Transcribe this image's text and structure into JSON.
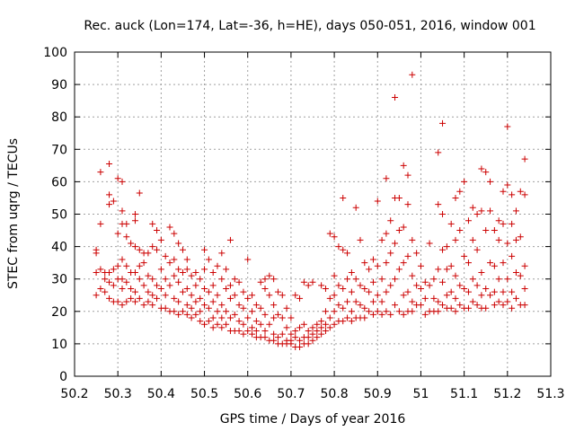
{
  "chart_data": {
    "type": "scatter",
    "title": "Rec. auck (Lon=174, Lat=-36, h=HE), days 050-051, 2016, window 001",
    "xlabel": "GPS time / Days of year 2016",
    "ylabel": "STEC from uqrg / TECUs",
    "xlim": [
      50.2,
      51.3
    ],
    "ylim": [
      0,
      100
    ],
    "xticks": [
      "50.2",
      "50.3",
      "50.4",
      "50.5",
      "50.6",
      "50.7",
      "50.8",
      "50.9",
      "51",
      "51.1",
      "51.2",
      "51.3"
    ],
    "yticks": [
      "0",
      "10",
      "20",
      "30",
      "40",
      "50",
      "60",
      "70",
      "80",
      "90",
      "100"
    ],
    "grid": true,
    "marker": "plus",
    "color": "#cc0000",
    "points": [
      [
        50.25,
        38
      ],
      [
        50.25,
        39
      ],
      [
        50.25,
        32
      ],
      [
        50.25,
        25
      ],
      [
        50.26,
        63
      ],
      [
        50.26,
        47
      ],
      [
        50.26,
        33
      ],
      [
        50.26,
        27
      ],
      [
        50.27,
        32
      ],
      [
        50.27,
        30
      ],
      [
        50.27,
        26
      ],
      [
        50.28,
        65.5
      ],
      [
        50.28,
        56
      ],
      [
        50.28,
        53
      ],
      [
        50.28,
        32
      ],
      [
        50.28,
        29
      ],
      [
        50.28,
        24
      ],
      [
        50.29,
        54
      ],
      [
        50.29,
        33
      ],
      [
        50.29,
        28
      ],
      [
        50.29,
        23
      ],
      [
        50.3,
        61
      ],
      [
        50.3,
        44
      ],
      [
        50.3,
        34
      ],
      [
        50.3,
        30
      ],
      [
        50.3,
        23
      ],
      [
        50.31,
        60
      ],
      [
        50.31,
        51
      ],
      [
        50.31,
        47
      ],
      [
        50.31,
        36
      ],
      [
        50.31,
        30
      ],
      [
        50.31,
        27
      ],
      [
        50.31,
        22
      ],
      [
        50.32,
        47
      ],
      [
        50.32,
        43
      ],
      [
        50.32,
        34
      ],
      [
        50.32,
        29
      ],
      [
        50.32,
        23
      ],
      [
        50.33,
        41
      ],
      [
        50.33,
        32
      ],
      [
        50.33,
        27
      ],
      [
        50.33,
        24
      ],
      [
        50.34,
        50
      ],
      [
        50.34,
        48
      ],
      [
        50.34,
        40
      ],
      [
        50.34,
        32
      ],
      [
        50.34,
        26
      ],
      [
        50.34,
        23
      ],
      [
        50.35,
        56.5
      ],
      [
        50.35,
        39
      ],
      [
        50.35,
        34
      ],
      [
        50.35,
        30
      ],
      [
        50.35,
        24
      ],
      [
        50.36,
        38
      ],
      [
        50.36,
        35
      ],
      [
        50.36,
        28
      ],
      [
        50.36,
        22
      ],
      [
        50.37,
        38
      ],
      [
        50.37,
        31
      ],
      [
        50.37,
        26
      ],
      [
        50.37,
        23
      ],
      [
        50.38,
        47
      ],
      [
        50.38,
        40
      ],
      [
        50.38,
        30
      ],
      [
        50.38,
        25
      ],
      [
        50.38,
        22
      ],
      [
        50.39,
        45
      ],
      [
        50.39,
        39
      ],
      [
        50.39,
        28
      ],
      [
        50.39,
        24
      ],
      [
        50.4,
        42
      ],
      [
        50.4,
        33
      ],
      [
        50.4,
        27
      ],
      [
        50.4,
        21
      ],
      [
        50.41,
        37
      ],
      [
        50.41,
        30
      ],
      [
        50.41,
        25
      ],
      [
        50.41,
        21
      ],
      [
        50.42,
        46
      ],
      [
        50.42,
        35
      ],
      [
        50.42,
        28
      ],
      [
        50.42,
        20
      ],
      [
        50.43,
        44
      ],
      [
        50.43,
        36
      ],
      [
        50.43,
        31
      ],
      [
        50.43,
        24
      ],
      [
        50.43,
        20
      ],
      [
        50.44,
        41
      ],
      [
        50.44,
        33
      ],
      [
        50.44,
        29
      ],
      [
        50.44,
        23
      ],
      [
        50.44,
        19
      ],
      [
        50.45,
        39
      ],
      [
        50.45,
        32
      ],
      [
        50.45,
        26
      ],
      [
        50.45,
        20
      ],
      [
        50.46,
        36
      ],
      [
        50.46,
        33
      ],
      [
        50.46,
        27
      ],
      [
        50.46,
        22
      ],
      [
        50.46,
        19
      ],
      [
        50.47,
        31
      ],
      [
        50.47,
        25
      ],
      [
        50.47,
        21
      ],
      [
        50.47,
        18
      ],
      [
        50.48,
        32
      ],
      [
        50.48,
        28
      ],
      [
        50.48,
        23
      ],
      [
        50.48,
        19
      ],
      [
        50.49,
        30
      ],
      [
        50.49,
        24
      ],
      [
        50.49,
        20
      ],
      [
        50.49,
        17
      ],
      [
        50.5,
        39
      ],
      [
        50.5,
        33
      ],
      [
        50.5,
        27
      ],
      [
        50.5,
        22
      ],
      [
        50.5,
        16
      ],
      [
        50.51,
        36
      ],
      [
        50.51,
        26
      ],
      [
        50.51,
        21
      ],
      [
        50.51,
        17
      ],
      [
        50.52,
        32
      ],
      [
        50.52,
        28
      ],
      [
        50.52,
        23
      ],
      [
        50.52,
        18
      ],
      [
        50.52,
        15
      ],
      [
        50.53,
        34
      ],
      [
        50.53,
        25
      ],
      [
        50.53,
        20
      ],
      [
        50.53,
        16
      ],
      [
        50.54,
        38
      ],
      [
        50.54,
        30
      ],
      [
        50.54,
        22
      ],
      [
        50.54,
        18
      ],
      [
        50.54,
        15
      ],
      [
        50.55,
        33
      ],
      [
        50.55,
        27
      ],
      [
        50.55,
        20
      ],
      [
        50.55,
        16
      ],
      [
        50.56,
        42
      ],
      [
        50.56,
        28
      ],
      [
        50.56,
        24
      ],
      [
        50.56,
        18
      ],
      [
        50.56,
        14
      ],
      [
        50.57,
        30
      ],
      [
        50.57,
        25
      ],
      [
        50.57,
        19
      ],
      [
        50.57,
        14
      ],
      [
        50.58,
        29
      ],
      [
        50.58,
        22
      ],
      [
        50.58,
        17
      ],
      [
        50.58,
        14
      ],
      [
        50.59,
        26
      ],
      [
        50.59,
        21
      ],
      [
        50.59,
        16
      ],
      [
        50.59,
        13
      ],
      [
        50.6,
        36
      ],
      [
        50.6,
        24
      ],
      [
        50.6,
        18
      ],
      [
        50.6,
        14
      ],
      [
        50.61,
        25
      ],
      [
        50.61,
        20
      ],
      [
        50.61,
        15
      ],
      [
        50.61,
        13
      ],
      [
        50.62,
        22
      ],
      [
        50.62,
        17
      ],
      [
        50.62,
        14
      ],
      [
        50.62,
        12
      ],
      [
        50.63,
        29
      ],
      [
        50.63,
        21
      ],
      [
        50.63,
        16
      ],
      [
        50.63,
        12
      ],
      [
        50.64,
        30
      ],
      [
        50.64,
        27
      ],
      [
        50.64,
        19
      ],
      [
        50.64,
        14
      ],
      [
        50.64,
        12
      ],
      [
        50.65,
        31
      ],
      [
        50.65,
        25
      ],
      [
        50.65,
        16
      ],
      [
        50.65,
        11
      ],
      [
        50.66,
        30
      ],
      [
        50.66,
        22
      ],
      [
        50.66,
        18
      ],
      [
        50.66,
        13
      ],
      [
        50.66,
        11
      ],
      [
        50.67,
        26
      ],
      [
        50.67,
        19
      ],
      [
        50.67,
        12
      ],
      [
        50.67,
        10
      ],
      [
        50.68,
        25
      ],
      [
        50.68,
        18
      ],
      [
        50.68,
        13
      ],
      [
        50.68,
        10
      ],
      [
        50.69,
        21
      ],
      [
        50.69,
        15
      ],
      [
        50.69,
        11
      ],
      [
        50.69,
        10
      ],
      [
        50.7,
        18
      ],
      [
        50.7,
        13
      ],
      [
        50.7,
        11
      ],
      [
        50.7,
        10
      ],
      [
        50.71,
        25
      ],
      [
        50.71,
        14
      ],
      [
        50.71,
        12
      ],
      [
        50.71,
        9
      ],
      [
        50.72,
        24
      ],
      [
        50.72,
        15
      ],
      [
        50.72,
        11
      ],
      [
        50.72,
        9
      ],
      [
        50.73,
        29
      ],
      [
        50.73,
        16
      ],
      [
        50.73,
        12
      ],
      [
        50.73,
        10
      ],
      [
        50.74,
        28
      ],
      [
        50.74,
        14
      ],
      [
        50.74,
        12
      ],
      [
        50.74,
        10
      ],
      [
        50.75,
        29
      ],
      [
        50.75,
        15
      ],
      [
        50.75,
        13
      ],
      [
        50.75,
        11
      ],
      [
        50.76,
        16
      ],
      [
        50.76,
        14
      ],
      [
        50.76,
        12
      ],
      [
        50.77,
        28
      ],
      [
        50.77,
        17
      ],
      [
        50.77,
        15
      ],
      [
        50.77,
        13
      ],
      [
        50.78,
        27
      ],
      [
        50.78,
        20
      ],
      [
        50.78,
        16
      ],
      [
        50.78,
        14
      ],
      [
        50.79,
        44
      ],
      [
        50.79,
        24
      ],
      [
        50.79,
        18
      ],
      [
        50.79,
        15
      ],
      [
        50.8,
        43
      ],
      [
        50.8,
        31
      ],
      [
        50.8,
        25
      ],
      [
        50.8,
        20
      ],
      [
        50.8,
        16
      ],
      [
        50.81,
        40
      ],
      [
        50.81,
        28
      ],
      [
        50.81,
        22
      ],
      [
        50.81,
        17
      ],
      [
        50.82,
        55
      ],
      [
        50.82,
        39
      ],
      [
        50.82,
        27
      ],
      [
        50.82,
        21
      ],
      [
        50.82,
        17
      ],
      [
        50.83,
        38
      ],
      [
        50.83,
        30
      ],
      [
        50.83,
        23
      ],
      [
        50.83,
        18
      ],
      [
        50.84,
        32
      ],
      [
        50.84,
        26
      ],
      [
        50.84,
        20
      ],
      [
        50.84,
        17
      ],
      [
        50.85,
        52
      ],
      [
        50.85,
        30
      ],
      [
        50.85,
        23
      ],
      [
        50.85,
        18
      ],
      [
        50.86,
        42
      ],
      [
        50.86,
        28
      ],
      [
        50.86,
        22
      ],
      [
        50.86,
        18
      ],
      [
        50.87,
        35
      ],
      [
        50.87,
        27
      ],
      [
        50.87,
        21
      ],
      [
        50.87,
        18
      ],
      [
        50.88,
        33
      ],
      [
        50.88,
        26
      ],
      [
        50.88,
        20
      ],
      [
        50.89,
        36
      ],
      [
        50.89,
        29
      ],
      [
        50.89,
        23
      ],
      [
        50.89,
        19
      ],
      [
        50.9,
        54
      ],
      [
        50.9,
        34
      ],
      [
        50.9,
        25
      ],
      [
        50.9,
        20
      ],
      [
        50.91,
        42
      ],
      [
        50.91,
        30
      ],
      [
        50.91,
        23
      ],
      [
        50.91,
        19
      ],
      [
        50.92,
        61
      ],
      [
        50.92,
        44
      ],
      [
        50.92,
        35
      ],
      [
        50.92,
        26
      ],
      [
        50.92,
        20
      ],
      [
        50.93,
        48
      ],
      [
        50.93,
        38
      ],
      [
        50.93,
        28
      ],
      [
        50.93,
        19
      ],
      [
        50.94,
        86
      ],
      [
        50.94,
        55
      ],
      [
        50.94,
        41
      ],
      [
        50.94,
        30
      ],
      [
        50.94,
        22
      ],
      [
        50.95,
        55
      ],
      [
        50.95,
        45
      ],
      [
        50.95,
        33
      ],
      [
        50.95,
        20
      ],
      [
        50.96,
        65
      ],
      [
        50.96,
        46
      ],
      [
        50.96,
        35
      ],
      [
        50.96,
        25
      ],
      [
        50.96,
        19
      ],
      [
        50.97,
        62
      ],
      [
        50.97,
        53
      ],
      [
        50.97,
        37
      ],
      [
        50.97,
        26
      ],
      [
        50.97,
        20
      ],
      [
        50.98,
        93
      ],
      [
        50.98,
        42
      ],
      [
        50.98,
        31
      ],
      [
        50.98,
        23
      ],
      [
        50.98,
        20
      ],
      [
        50.99,
        38
      ],
      [
        50.99,
        28
      ],
      [
        50.99,
        22
      ],
      [
        51.0,
        34
      ],
      [
        51.0,
        27
      ],
      [
        51.0,
        22
      ],
      [
        51.01,
        29
      ],
      [
        51.01,
        24
      ],
      [
        51.01,
        19
      ],
      [
        51.02,
        41
      ],
      [
        51.02,
        28
      ],
      [
        51.02,
        20
      ],
      [
        51.03,
        30
      ],
      [
        51.03,
        24
      ],
      [
        51.03,
        20
      ],
      [
        51.04,
        69
      ],
      [
        51.04,
        53
      ],
      [
        51.04,
        33
      ],
      [
        51.04,
        23
      ],
      [
        51.04,
        20
      ],
      [
        51.05,
        78
      ],
      [
        51.05,
        50
      ],
      [
        51.05,
        39
      ],
      [
        51.05,
        29
      ],
      [
        51.05,
        22
      ],
      [
        51.06,
        40
      ],
      [
        51.06,
        33
      ],
      [
        51.06,
        25
      ],
      [
        51.06,
        21
      ],
      [
        51.07,
        47
      ],
      [
        51.07,
        34
      ],
      [
        51.07,
        26
      ],
      [
        51.07,
        21
      ],
      [
        51.08,
        55
      ],
      [
        51.08,
        42
      ],
      [
        51.08,
        31
      ],
      [
        51.08,
        24
      ],
      [
        51.08,
        20
      ],
      [
        51.09,
        57
      ],
      [
        51.09,
        45
      ],
      [
        51.09,
        28
      ],
      [
        51.09,
        22
      ],
      [
        51.1,
        60
      ],
      [
        51.1,
        37
      ],
      [
        51.1,
        27
      ],
      [
        51.1,
        21
      ],
      [
        51.11,
        48
      ],
      [
        51.11,
        35
      ],
      [
        51.11,
        26
      ],
      [
        51.11,
        21
      ],
      [
        51.12,
        52
      ],
      [
        51.12,
        42
      ],
      [
        51.12,
        30
      ],
      [
        51.12,
        23
      ],
      [
        51.13,
        50
      ],
      [
        51.13,
        39
      ],
      [
        51.13,
        28
      ],
      [
        51.13,
        22
      ],
      [
        51.14,
        64
      ],
      [
        51.14,
        51
      ],
      [
        51.14,
        32
      ],
      [
        51.14,
        25
      ],
      [
        51.14,
        21
      ],
      [
        51.15,
        63
      ],
      [
        51.15,
        45
      ],
      [
        51.15,
        27
      ],
      [
        51.15,
        21
      ],
      [
        51.16,
        60
      ],
      [
        51.16,
        51
      ],
      [
        51.16,
        35
      ],
      [
        51.16,
        25
      ],
      [
        51.17,
        45
      ],
      [
        51.17,
        34
      ],
      [
        51.17,
        26
      ],
      [
        51.17,
        22
      ],
      [
        51.18,
        48
      ],
      [
        51.18,
        42
      ],
      [
        51.18,
        30
      ],
      [
        51.18,
        23
      ],
      [
        51.19,
        57
      ],
      [
        51.19,
        47
      ],
      [
        51.19,
        35
      ],
      [
        51.19,
        26
      ],
      [
        51.19,
        22
      ],
      [
        51.2,
        77
      ],
      [
        51.2,
        59
      ],
      [
        51.2,
        41
      ],
      [
        51.2,
        30
      ],
      [
        51.2,
        23
      ],
      [
        51.21,
        56
      ],
      [
        51.21,
        47
      ],
      [
        51.21,
        37
      ],
      [
        51.21,
        26
      ],
      [
        51.21,
        21
      ],
      [
        51.22,
        51
      ],
      [
        51.22,
        42
      ],
      [
        51.22,
        32
      ],
      [
        51.22,
        24
      ],
      [
        51.23,
        57
      ],
      [
        51.23,
        43
      ],
      [
        51.23,
        31
      ],
      [
        51.23,
        22
      ],
      [
        51.24,
        67
      ],
      [
        51.24,
        56
      ],
      [
        51.24,
        34
      ],
      [
        51.24,
        27
      ],
      [
        51.24,
        22
      ]
    ]
  }
}
